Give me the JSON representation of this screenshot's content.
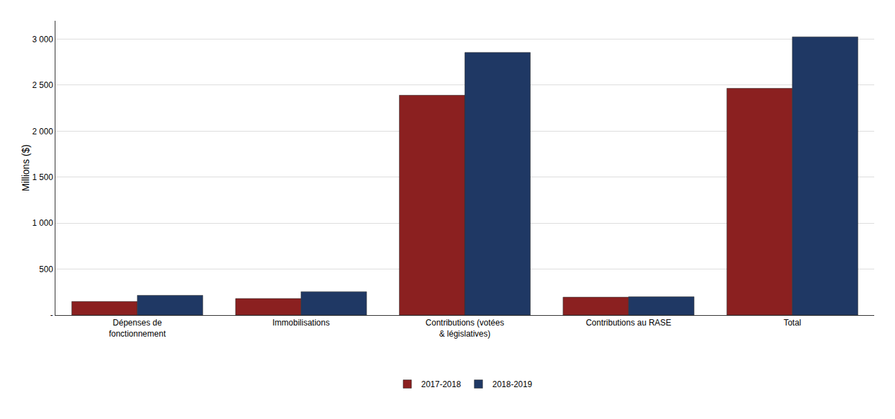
{
  "chart_data": {
    "type": "bar",
    "categories": [
      "Dépenses de\nfonctionnement",
      "Immobilisations",
      "Contributions (votées\n& législatives)",
      "Contributions au RASE",
      "Total"
    ],
    "series": [
      {
        "name": "2017-2018",
        "color": "#8B2020",
        "values": [
          148,
          180,
          2390,
          195,
          2465
        ]
      },
      {
        "name": "2018-2019",
        "color": "#1F3864",
        "values": [
          215,
          255,
          2855,
          200,
          3025
        ]
      }
    ],
    "ylabel": "Millions ($)",
    "ylim": [
      0,
      3200
    ],
    "yticks": [
      {
        "value": 0,
        "label": "-"
      },
      500,
      {
        "value": 1000,
        "label": "1 000"
      },
      {
        "value": 1500,
        "label": "1 500"
      },
      {
        "value": 2000,
        "label": "2 000"
      },
      {
        "value": 2500,
        "label": "2 500"
      },
      {
        "value": 3000,
        "label": "3 000"
      }
    ],
    "grid": true,
    "legend": "bottom"
  }
}
